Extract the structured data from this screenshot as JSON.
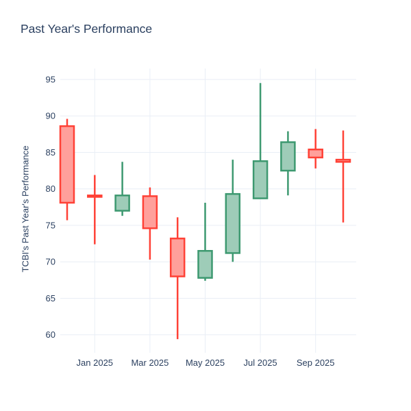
{
  "title": "Past Year's Performance",
  "y_axis": {
    "title": "TCBI's Past Year's Performance",
    "ticks": [
      60,
      65,
      70,
      75,
      80,
      85,
      90,
      95
    ]
  },
  "x_axis": {
    "tick_labels": [
      "Jan 2025",
      "Mar 2025",
      "May 2025",
      "Jul 2025",
      "Sep 2025"
    ],
    "tick_indices": [
      1,
      3,
      5,
      7,
      9
    ]
  },
  "colors": {
    "increasing_line": "#3d9970",
    "increasing_fill": "#9eccb8",
    "decreasing_line": "#ff4136",
    "decreasing_fill": "#ffa09b",
    "grid": "#e9eef6",
    "text": "#2a3f5f",
    "background": "#ffffff"
  },
  "chart_data": {
    "type": "candlestick",
    "title": "Past Year's Performance",
    "ylabel": "TCBI's Past Year's Performance",
    "ylim": [
      58,
      96.5
    ],
    "grid": true,
    "legend": "none",
    "x": [
      "Dec 2024",
      "Jan 2025",
      "Feb 2025",
      "Mar 2025",
      "Apr 2025",
      "May 2025",
      "Jun 2025",
      "Jul 2025",
      "Aug 2025",
      "Sep 2025",
      "Oct 2025"
    ],
    "open": [
      88.6,
      79.1,
      77.0,
      79.0,
      73.2,
      67.8,
      71.2,
      78.7,
      82.5,
      85.4,
      84.0
    ],
    "high": [
      89.6,
      81.9,
      83.7,
      80.2,
      76.1,
      78.1,
      84.0,
      94.5,
      87.9,
      88.2,
      88.0
    ],
    "low": [
      75.7,
      72.4,
      76.3,
      70.3,
      59.4,
      67.4,
      70.0,
      78.7,
      79.1,
      82.8,
      75.4
    ],
    "close": [
      78.1,
      78.9,
      79.1,
      74.6,
      68.0,
      71.5,
      79.3,
      83.8,
      86.4,
      84.3,
      83.7
    ]
  }
}
